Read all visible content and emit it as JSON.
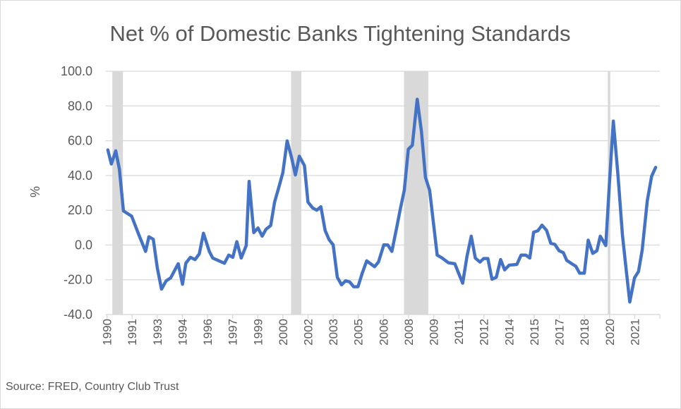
{
  "chart_data": {
    "type": "line",
    "title": "Net % of Domestic Banks Tightening Standards",
    "xlabel": "",
    "ylabel": "%",
    "source": "Source: FRED, Country Club Trust",
    "ylim": [
      -40,
      100
    ],
    "xlim": [
      1990,
      2022.95
    ],
    "yticks": [
      "100.0",
      "80.0",
      "60.0",
      "40.0",
      "20.0",
      "0.0",
      "-20.0",
      "-40.0"
    ],
    "ytick_values": [
      100,
      80,
      60,
      40,
      20,
      0,
      -20,
      -40
    ],
    "xtick_labels": [
      "1990",
      "1991",
      "1993",
      "1994",
      "1996",
      "1997",
      "1999",
      "2000",
      "2002",
      "2003",
      "2005",
      "2006",
      "2008",
      "2009",
      "2011",
      "2012",
      "2014",
      "2015",
      "2017",
      "2018",
      "2020",
      "2021"
    ],
    "grid": true,
    "line_color": "#4472C4",
    "recession_color": "#D9D9D9",
    "recessions": [
      [
        1990.32,
        1990.95
      ],
      [
        2000.97,
        2001.58
      ],
      [
        2007.7,
        2009.15
      ],
      [
        2019.85,
        2020.0
      ]
    ],
    "series": [
      {
        "name": "Net % tightening",
        "x": [
          1990.05,
          1990.26,
          1990.52,
          1990.74,
          1990.98,
          1991.47,
          1991.9,
          1992.3,
          1992.5,
          1992.76,
          1993.0,
          1993.25,
          1993.53,
          1993.8,
          1994.0,
          1994.25,
          1994.5,
          1994.7,
          1994.97,
          1995.25,
          1995.5,
          1995.75,
          1996.1,
          1996.3,
          1997.0,
          1997.26,
          1997.5,
          1997.74,
          1998.0,
          1998.3,
          1998.47,
          1998.75,
          1999.0,
          1999.25,
          1999.48,
          1999.76,
          1999.99,
          2000.27,
          2000.48,
          2000.74,
          2001.0,
          2001.23,
          2001.46,
          2001.77,
          2001.98,
          2002.26,
          2002.5,
          2002.75,
          2003.0,
          2003.24,
          2003.48,
          2003.73,
          2003.98,
          2004.22,
          2004.47,
          2004.7,
          2004.96,
          2005.2,
          2005.48,
          2005.95,
          2006.18,
          2006.5,
          2006.74,
          2006.98,
          2007.26,
          2007.48,
          2007.72,
          2007.96,
          2008.2,
          2008.49,
          2008.74,
          2008.98,
          2009.23,
          2009.68,
          2009.96,
          2010.35,
          2010.73,
          2011.2,
          2011.46,
          2011.71,
          2011.95,
          2012.23,
          2012.45,
          2012.7,
          2012.95,
          2013.2,
          2013.46,
          2013.7,
          2013.97,
          2014.43,
          2014.68,
          2014.96,
          2015.2,
          2015.43,
          2015.68,
          2015.93,
          2016.2,
          2016.45,
          2016.7,
          2016.95,
          2017.2,
          2017.4,
          2017.7,
          2017.94,
          2018.17,
          2018.45,
          2018.68,
          2018.95,
          2019.2,
          2019.4,
          2019.73,
          2019.94,
          2020.18,
          2020.46,
          2020.72,
          2020.95,
          2021.16,
          2021.44,
          2021.68,
          2021.9,
          2022.2,
          2022.46,
          2022.7
        ],
        "y": [
          54.7,
          46.6,
          54.2,
          43.6,
          19.6,
          16.6,
          5.8,
          -3.7,
          4.7,
          3.3,
          -13.2,
          -25.4,
          -20.6,
          -18.9,
          -15.2,
          -10.8,
          -22.6,
          -10.5,
          -7.1,
          -8.4,
          -5.1,
          6.8,
          -3.7,
          -7.5,
          -10.5,
          -5.8,
          -7.1,
          1.9,
          -7.5,
          -0.3,
          36.6,
          7.1,
          9.8,
          5.1,
          9.1,
          11.2,
          24.7,
          34.2,
          41.6,
          59.9,
          50.4,
          40.3,
          51.1,
          45.7,
          24.7,
          21.3,
          20.0,
          22.0,
          8.4,
          3.0,
          0.1,
          -18.6,
          -22.9,
          -20.6,
          -21.3,
          -24.0,
          -24.0,
          -16.6,
          -9.1,
          -12.5,
          -9.8,
          0.1,
          0.0,
          -3.7,
          9.8,
          20.6,
          31.5,
          55.1,
          57.4,
          83.9,
          65.3,
          38.9,
          31.5,
          -5.8,
          -7.4,
          -10.2,
          -10.8,
          -22.0,
          -6.4,
          5.1,
          -7.5,
          -9.8,
          -7.8,
          -7.8,
          -19.7,
          -18.6,
          -8.4,
          -14.3,
          -11.6,
          -11.2,
          -5.8,
          -5.8,
          -7.5,
          7.4,
          8.2,
          11.4,
          8.4,
          1.0,
          0.3,
          -3.3,
          -4.4,
          -8.8,
          -10.8,
          -12.2,
          -16.2,
          -16.2,
          2.8,
          -4.8,
          -3.3,
          5.1,
          -0.3,
          34.2,
          71.3,
          39.6,
          5.8,
          -14.5,
          -32.8,
          -18.9,
          -15.2,
          -3.0,
          25.4,
          39.6,
          44.7
        ]
      }
    ]
  }
}
